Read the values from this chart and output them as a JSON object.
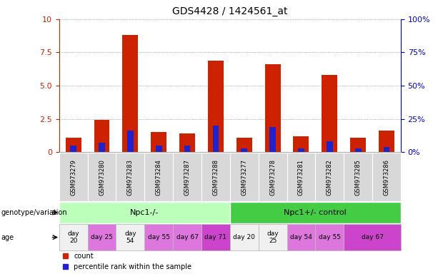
{
  "title": "GDS4428 / 1424561_at",
  "samples": [
    "GSM973279",
    "GSM973280",
    "GSM973283",
    "GSM973284",
    "GSM973287",
    "GSM973288",
    "GSM973277",
    "GSM973278",
    "GSM973281",
    "GSM973282",
    "GSM973285",
    "GSM973286"
  ],
  "count_values": [
    1.1,
    2.4,
    8.8,
    1.5,
    1.4,
    6.9,
    1.1,
    6.6,
    1.2,
    5.8,
    1.1,
    1.6
  ],
  "percentile_values": [
    5.0,
    7.0,
    16.0,
    5.0,
    5.0,
    20.0,
    3.0,
    19.0,
    3.0,
    8.0,
    3.0,
    4.0
  ],
  "ylim_left": [
    0,
    10
  ],
  "ylim_right": [
    0,
    100
  ],
  "yticks_left": [
    0,
    2.5,
    5.0,
    7.5,
    10
  ],
  "yticks_right": [
    0,
    25,
    50,
    75,
    100
  ],
  "bar_color_count": "#cc2200",
  "bar_color_percentile": "#2222cc",
  "groups": [
    {
      "label": "Npc1-/-",
      "start": 0,
      "end": 6,
      "color": "#bbffbb"
    },
    {
      "label": "Npc1+/- control",
      "start": 6,
      "end": 12,
      "color": "#44cc44"
    }
  ],
  "age_spans": [
    {
      "label": "day\n20",
      "start": 0,
      "end": 1,
      "color": "#f0f0f0"
    },
    {
      "label": "day 25",
      "start": 1,
      "end": 2,
      "color": "#dd77dd"
    },
    {
      "label": "day\n54",
      "start": 2,
      "end": 3,
      "color": "#f0f0f0"
    },
    {
      "label": "day 55",
      "start": 3,
      "end": 4,
      "color": "#dd77dd"
    },
    {
      "label": "day 67",
      "start": 4,
      "end": 5,
      "color": "#dd77dd"
    },
    {
      "label": "day 71",
      "start": 5,
      "end": 6,
      "color": "#cc44cc"
    },
    {
      "label": "day 20",
      "start": 6,
      "end": 7,
      "color": "#f0f0f0"
    },
    {
      "label": "day\n25",
      "start": 7,
      "end": 8,
      "color": "#f0f0f0"
    },
    {
      "label": "day 54",
      "start": 8,
      "end": 9,
      "color": "#dd77dd"
    },
    {
      "label": "day 55",
      "start": 9,
      "end": 10,
      "color": "#dd77dd"
    },
    {
      "label": "day 67",
      "start": 10,
      "end": 12,
      "color": "#cc44cc"
    }
  ],
  "grid_color": "#888888",
  "tick_color_left": "#cc2200",
  "tick_color_right": "#0000cc",
  "genotype_label": "genotype/variation",
  "age_label": "age",
  "legend_count": "count",
  "legend_percentile": "percentile rank within the sample",
  "background_color": "#ffffff"
}
